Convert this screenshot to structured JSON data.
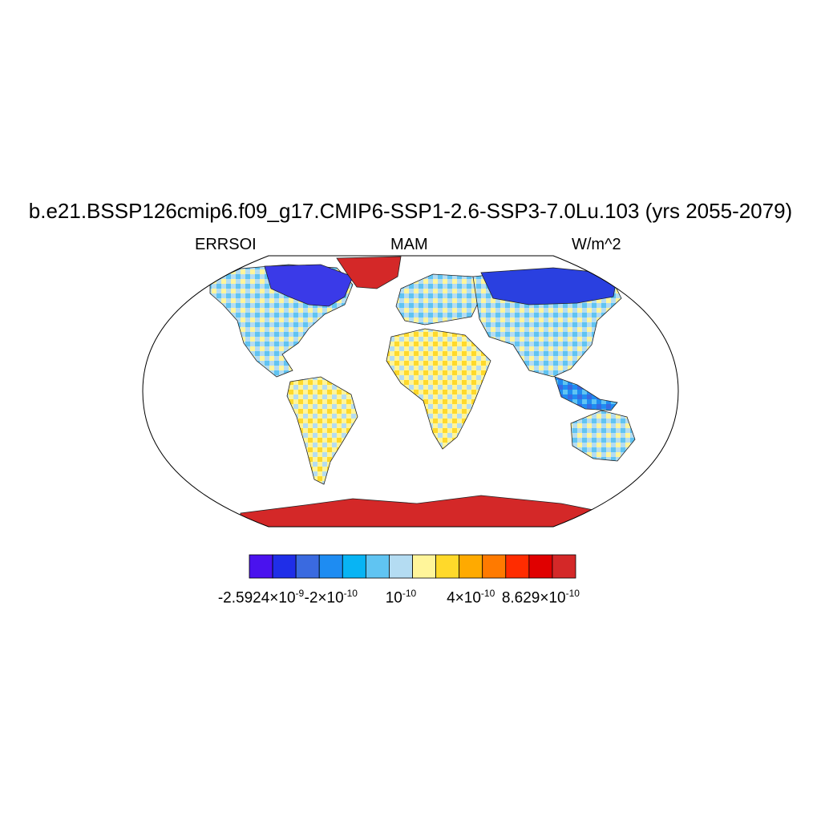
{
  "title": "b.e21.BSSP126cmip6.f09_g17.CMIP6-SSP1-2.6-SSP3-7.0Lu.103 (yrs 2055-2079)",
  "left_label": "ERRSOI",
  "center_label": "MAM",
  "right_label": "W/m^2",
  "colorbar": {
    "colors": [
      "#4a12ee",
      "#1f2ee8",
      "#3a6ae0",
      "#1e8cf2",
      "#08b4f4",
      "#60c4f2",
      "#b4dcf2",
      "#fff59a",
      "#ffd92a",
      "#ffaa00",
      "#ff7a00",
      "#ff2c00",
      "#e00000",
      "#d42828"
    ],
    "labels": [
      {
        "mantissa": "-2.5924×10",
        "exponent": "-9"
      },
      {
        "mantissa": "-2×10",
        "exponent": "-10"
      },
      {
        "mantissa": "10",
        "exponent": "-10"
      },
      {
        "mantissa": "4×10",
        "exponent": "-10"
      },
      {
        "mantissa": "8.629×10",
        "exponent": "-10"
      }
    ]
  },
  "map_colors": {
    "ocean": "#ffffff",
    "greenland": "#d42828",
    "antarctica": "#d42828",
    "canada_arctic": "#3a3ae8",
    "siberia": "#2a40e0",
    "land_mixed": "#b4dcf2",
    "land_warm": "#ffd92a"
  }
}
